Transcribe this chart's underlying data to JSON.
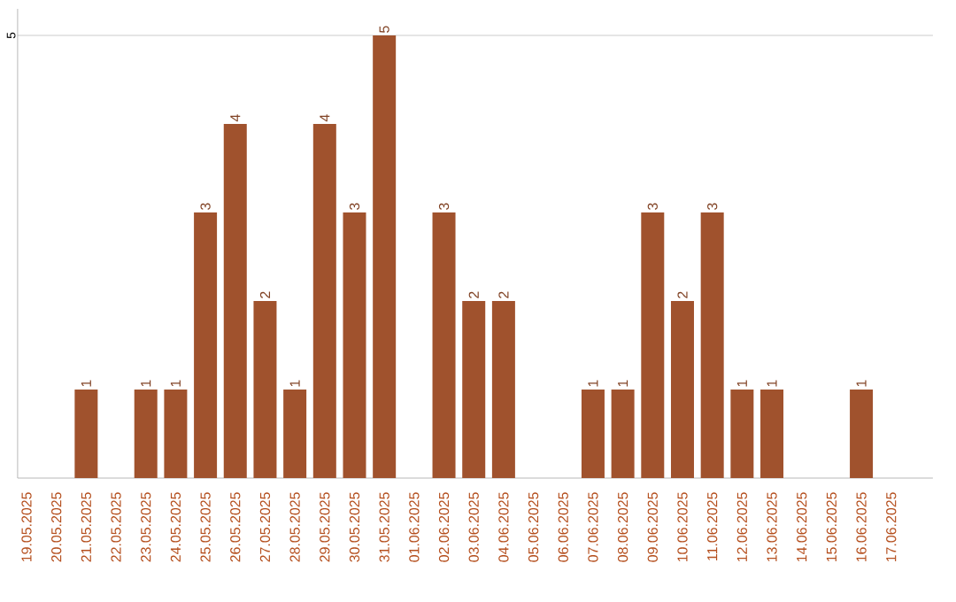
{
  "chart_data": {
    "type": "bar",
    "categories": [
      "19.05.2025",
      "20.05.2025",
      "21.05.2025",
      "22.05.2025",
      "23.05.2025",
      "24.05.2025",
      "25.05.2025",
      "26.05.2025",
      "27.05.2025",
      "28.05.2025",
      "29.05.2025",
      "30.05.2025",
      "31.05.2025",
      "01.06.2025",
      "02.06.2025",
      "03.06.2025",
      "04.06.2025",
      "05.06.2025",
      "06.06.2025",
      "07.06.2025",
      "08.06.2025",
      "09.06.2025",
      "10.06.2025",
      "11.06.2025",
      "12.06.2025",
      "13.06.2025",
      "14.06.2025",
      "15.06.2025",
      "16.06.2025",
      "17.06.2025"
    ],
    "values": [
      0,
      0,
      1,
      0,
      1,
      1,
      3,
      4,
      2,
      1,
      4,
      3,
      5,
      0,
      3,
      2,
      2,
      0,
      0,
      1,
      1,
      3,
      2,
      3,
      1,
      1,
      0,
      0,
      1,
      0
    ],
    "value_labels": [
      null,
      null,
      "1",
      null,
      "1",
      "1",
      "3",
      "4",
      "2",
      "1",
      "4",
      "3",
      "5",
      null,
      "3",
      "2",
      "2",
      null,
      null,
      "1",
      "1",
      "3",
      "2",
      "3",
      "1",
      "1",
      null,
      null,
      "1",
      null
    ],
    "color": "#a0522d",
    "ylim": [
      0,
      5.3
    ],
    "yticks": [
      5
    ],
    "grid": "y"
  }
}
